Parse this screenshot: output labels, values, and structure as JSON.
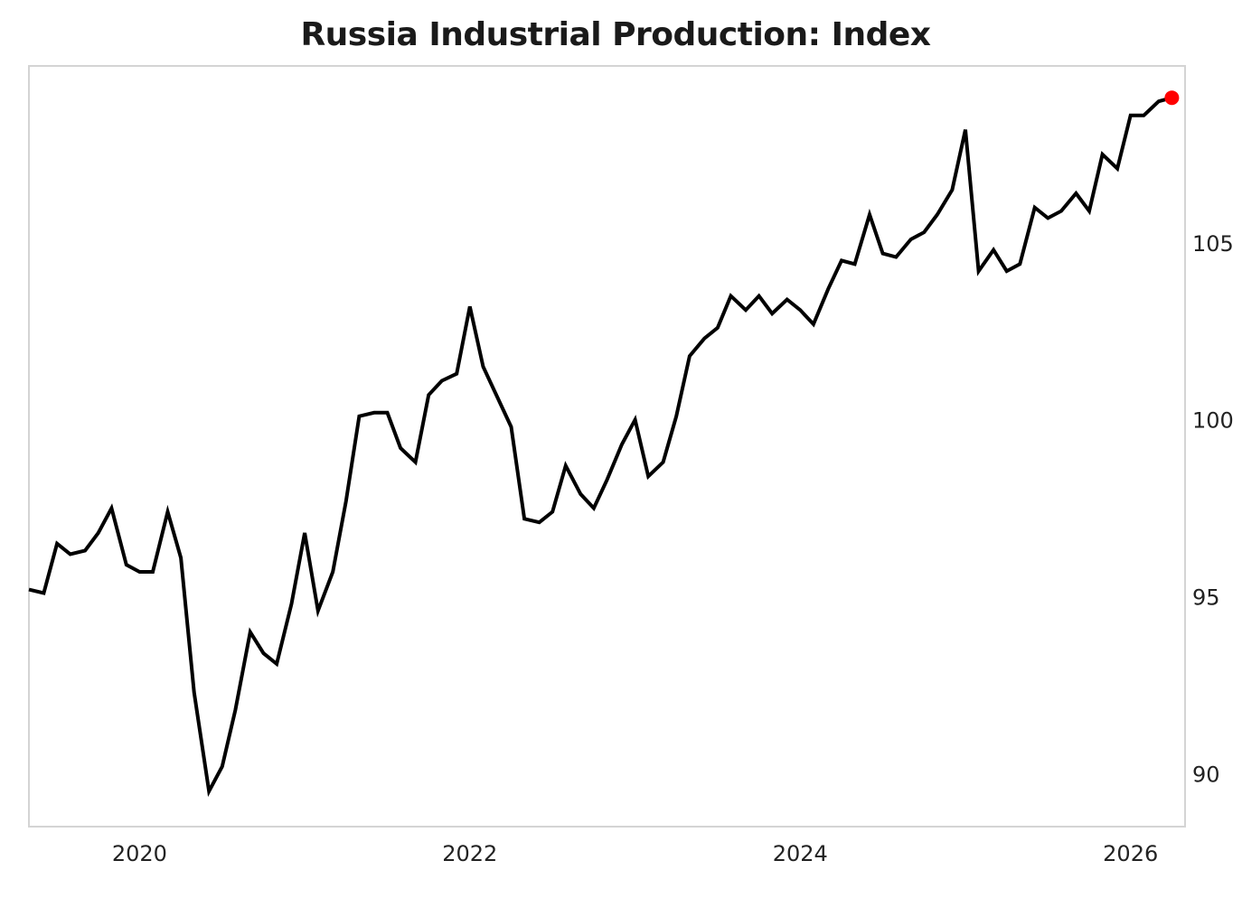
{
  "chart_data": {
    "type": "line",
    "title": "Russia Industrial Production: Index",
    "xlabel": "",
    "ylabel": "",
    "x_tick_labels": [
      "2020",
      "2022",
      "2024",
      "2026"
    ],
    "x_ticks": [
      2020,
      2022,
      2024,
      2026
    ],
    "y_tick_labels": [
      "90",
      "95",
      "100",
      "105"
    ],
    "y_ticks": [
      90,
      95,
      100,
      105
    ],
    "xlim": [
      2019.33,
      2026.33
    ],
    "ylim": [
      88.5,
      110.0
    ],
    "y_axis_side": "right",
    "grid": false,
    "legend": "none",
    "line_color": "#000000",
    "last_point_color": "#ff0000",
    "series": [
      {
        "values": [
          [
            2019.33,
            95.2
          ],
          [
            2019.42,
            95.1
          ],
          [
            2019.5,
            96.5
          ],
          [
            2019.58,
            96.2
          ],
          [
            2019.67,
            96.3
          ],
          [
            2019.75,
            96.8
          ],
          [
            2019.83,
            97.5
          ],
          [
            2019.92,
            95.9
          ],
          [
            2020.0,
            95.7
          ],
          [
            2020.08,
            95.7
          ],
          [
            2020.17,
            97.4
          ],
          [
            2020.25,
            96.1
          ],
          [
            2020.33,
            92.3
          ],
          [
            2020.42,
            89.5
          ],
          [
            2020.5,
            90.2
          ],
          [
            2020.58,
            91.8
          ],
          [
            2020.67,
            94.0
          ],
          [
            2020.75,
            93.4
          ],
          [
            2020.83,
            93.1
          ],
          [
            2020.92,
            94.8
          ],
          [
            2021.0,
            96.8
          ],
          [
            2021.08,
            94.6
          ],
          [
            2021.17,
            95.7
          ],
          [
            2021.25,
            97.7
          ],
          [
            2021.33,
            100.1
          ],
          [
            2021.42,
            100.2
          ],
          [
            2021.5,
            100.2
          ],
          [
            2021.58,
            99.2
          ],
          [
            2021.67,
            98.8
          ],
          [
            2021.75,
            100.7
          ],
          [
            2021.83,
            101.1
          ],
          [
            2021.92,
            101.3
          ],
          [
            2022.0,
            103.2
          ],
          [
            2022.08,
            101.5
          ],
          [
            2022.17,
            100.6
          ],
          [
            2022.25,
            99.8
          ],
          [
            2022.33,
            97.2
          ],
          [
            2022.42,
            97.1
          ],
          [
            2022.5,
            97.4
          ],
          [
            2022.58,
            98.7
          ],
          [
            2022.67,
            97.9
          ],
          [
            2022.75,
            97.5
          ],
          [
            2022.83,
            98.3
          ],
          [
            2022.92,
            99.3
          ],
          [
            2023.0,
            100.0
          ],
          [
            2023.08,
            98.4
          ],
          [
            2023.17,
            98.8
          ],
          [
            2023.25,
            100.1
          ],
          [
            2023.33,
            101.8
          ],
          [
            2023.42,
            102.3
          ],
          [
            2023.5,
            102.6
          ],
          [
            2023.58,
            103.5
          ],
          [
            2023.67,
            103.1
          ],
          [
            2023.75,
            103.5
          ],
          [
            2023.83,
            103.0
          ],
          [
            2023.92,
            103.4
          ],
          [
            2024.0,
            103.1
          ],
          [
            2024.08,
            102.7
          ],
          [
            2024.17,
            103.7
          ],
          [
            2024.25,
            104.5
          ],
          [
            2024.33,
            104.4
          ],
          [
            2024.42,
            105.8
          ],
          [
            2024.5,
            104.7
          ],
          [
            2024.58,
            104.6
          ],
          [
            2024.67,
            105.1
          ],
          [
            2024.75,
            105.3
          ],
          [
            2024.83,
            105.8
          ],
          [
            2024.92,
            106.5
          ],
          [
            2025.0,
            108.2
          ],
          [
            2025.08,
            104.2
          ],
          [
            2025.17,
            104.8
          ],
          [
            2025.25,
            104.2
          ],
          [
            2025.33,
            104.4
          ],
          [
            2025.42,
            106.0
          ],
          [
            2025.5,
            105.7
          ],
          [
            2025.58,
            105.9
          ],
          [
            2025.67,
            106.4
          ],
          [
            2025.75,
            105.9
          ],
          [
            2025.83,
            107.5
          ],
          [
            2025.92,
            107.1
          ],
          [
            2026.0,
            108.6
          ],
          [
            2026.08,
            108.6
          ],
          [
            2026.17,
            109.0
          ],
          [
            2026.25,
            109.1
          ]
        ]
      }
    ]
  }
}
